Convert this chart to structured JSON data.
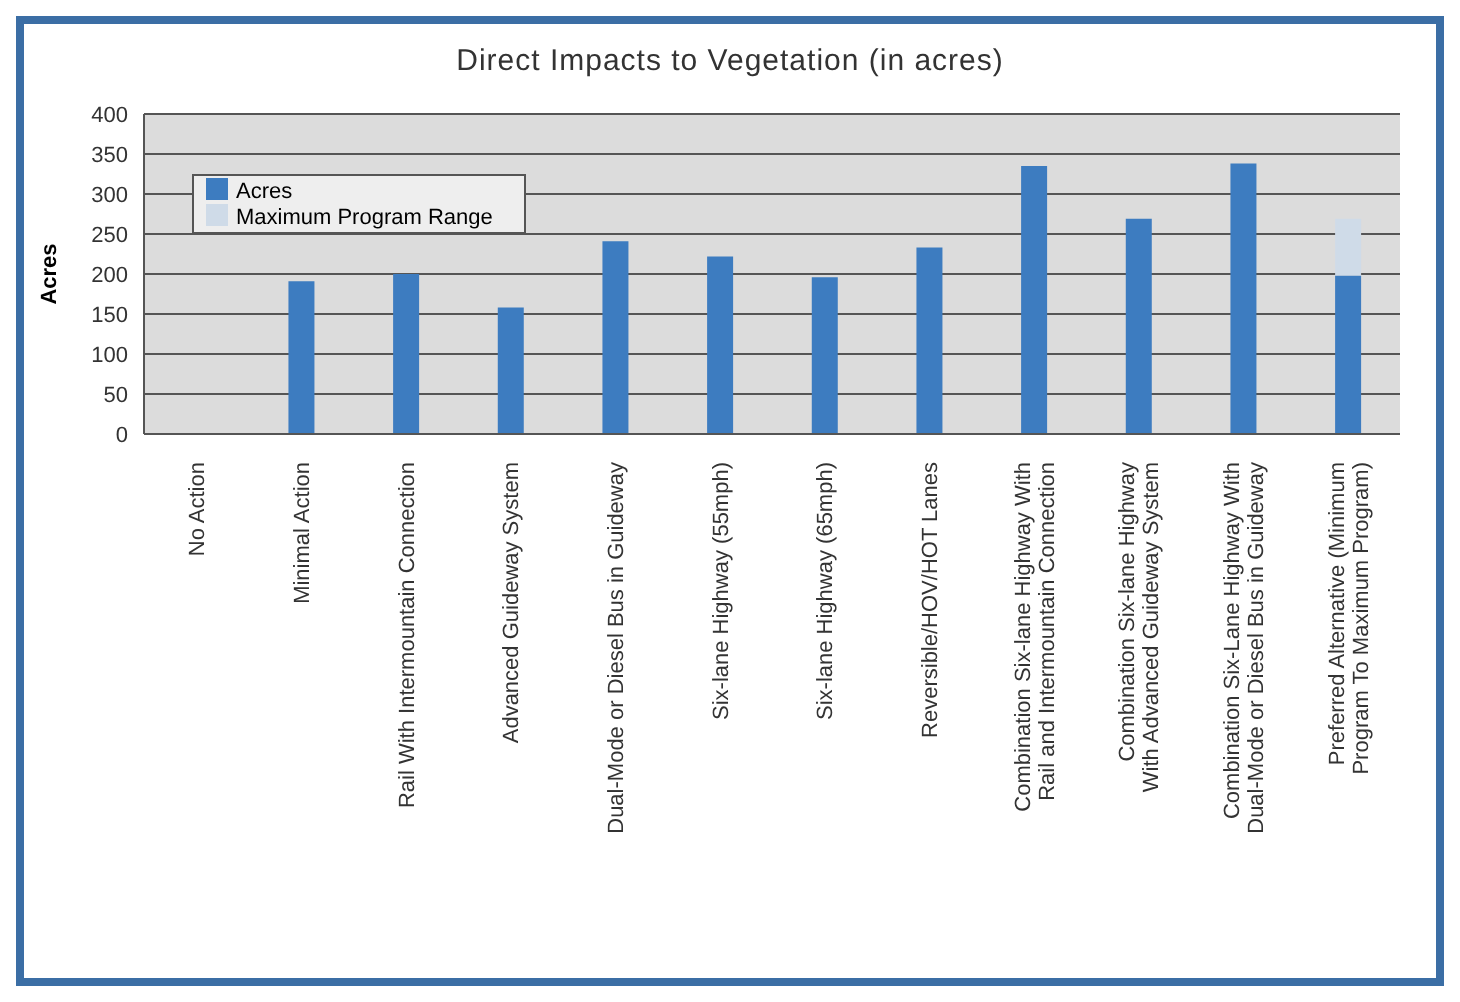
{
  "chart_data": {
    "type": "bar",
    "title": "Direct Impacts to Vegetation (in acres)",
    "ylabel": "Acres",
    "categories": [
      "No Action",
      "Minimal Action",
      "Rail With Intermountain Connection",
      "Advanced Guideway System",
      "Dual-Mode or Diesel Bus in Guideway",
      "Six-lane Highway (55mph)",
      "Six-lane Highway (65mph)",
      "Reversible/HOV/HOT Lanes",
      "Combination Six-lane Highway With Rail and Intermountain Connection",
      "Combination Six-lane Highway With Advanced Guideway System",
      "Combination Six-Lane Highway With Dual-Mode or Diesel Bus in Guideway",
      "Preferred Alternative (Minimum Program To Maximum Program)"
    ],
    "series": [
      {
        "name": "Acres",
        "color": "#3d7cc0",
        "values": [
          0,
          191,
          200,
          158,
          241,
          222,
          196,
          233,
          335,
          269,
          338,
          198
        ]
      },
      {
        "name": "Maximum Program Range",
        "color": "#cfdbe8",
        "values": [
          null,
          null,
          null,
          null,
          null,
          null,
          null,
          null,
          null,
          null,
          null,
          71
        ]
      }
    ],
    "stacked": true,
    "ylim": [
      0,
      400
    ],
    "yticks": [
      0,
      50,
      100,
      150,
      200,
      250,
      300,
      350,
      400
    ],
    "grid": "y",
    "legend": "top left"
  }
}
